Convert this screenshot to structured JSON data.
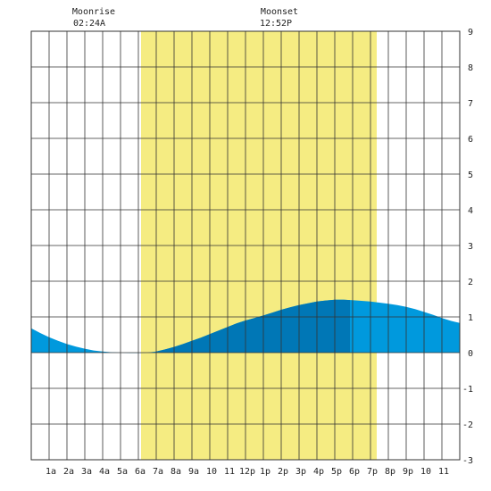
{
  "moon": {
    "rise_label": "Moonrise",
    "rise_time": "02:24A",
    "set_label": "Moonset",
    "set_time": "12:52P"
  },
  "chart_data": {
    "type": "area",
    "title": "",
    "xlabel": "",
    "ylabel": "",
    "x_range_hours": [
      0,
      24
    ],
    "ylim": [
      -3,
      9
    ],
    "y_ticks": [
      9,
      8,
      7,
      6,
      5,
      4,
      3,
      2,
      1,
      0,
      -1,
      -2,
      -3
    ],
    "x_ticks": [
      {
        "hour": 1,
        "label": "1a"
      },
      {
        "hour": 2,
        "label": "2a"
      },
      {
        "hour": 3,
        "label": "3a"
      },
      {
        "hour": 4,
        "label": "4a"
      },
      {
        "hour": 5,
        "label": "5a"
      },
      {
        "hour": 6,
        "label": "6a"
      },
      {
        "hour": 7,
        "label": "7a"
      },
      {
        "hour": 8,
        "label": "8a"
      },
      {
        "hour": 9,
        "label": "9a"
      },
      {
        "hour": 10,
        "label": "10"
      },
      {
        "hour": 11,
        "label": "11"
      },
      {
        "hour": 12,
        "label": "12p"
      },
      {
        "hour": 13,
        "label": "1p"
      },
      {
        "hour": 14,
        "label": "2p"
      },
      {
        "hour": 15,
        "label": "3p"
      },
      {
        "hour": 16,
        "label": "4p"
      },
      {
        "hour": 17,
        "label": "5p"
      },
      {
        "hour": 18,
        "label": "6p"
      },
      {
        "hour": 19,
        "label": "7p"
      },
      {
        "hour": 20,
        "label": "8p"
      },
      {
        "hour": 21,
        "label": "9p"
      },
      {
        "hour": 22,
        "label": "10"
      },
      {
        "hour": 23,
        "label": "11"
      }
    ],
    "grid": true,
    "daylight_hours": [
      6.15,
      19.35
    ],
    "rising_tide_hours": [
      7.0,
      17.85
    ],
    "moonrise_hour": 2.4,
    "moonset_hour": 12.87,
    "series": [
      {
        "x": [
          0,
          0.5,
          1,
          1.5,
          2,
          2.5,
          3,
          3.5,
          4,
          4.5,
          5,
          5.5,
          6,
          6.5,
          7,
          7.5,
          8,
          8.5,
          9,
          9.5,
          10,
          10.5,
          11,
          11.5,
          12,
          12.5,
          13,
          13.5,
          14,
          14.5,
          15,
          15.5,
          16,
          16.5,
          17,
          17.5,
          18,
          18.5,
          19,
          19.5,
          20,
          20.5,
          21,
          21.5,
          22,
          22.5,
          23,
          23.5,
          24
        ],
        "values": [
          0.68,
          0.55,
          0.43,
          0.33,
          0.24,
          0.17,
          0.11,
          0.06,
          0.03,
          0.01,
          0.0,
          -0.01,
          -0.01,
          0.0,
          0.03,
          0.09,
          0.16,
          0.24,
          0.33,
          0.42,
          0.52,
          0.62,
          0.72,
          0.82,
          0.9,
          0.97,
          1.04,
          1.12,
          1.2,
          1.27,
          1.33,
          1.38,
          1.43,
          1.46,
          1.48,
          1.48,
          1.47,
          1.45,
          1.43,
          1.4,
          1.37,
          1.33,
          1.28,
          1.22,
          1.14,
          1.06,
          0.97,
          0.89,
          0.83
        ]
      }
    ],
    "colors": {
      "daylight": "#f5ec82",
      "tide": "#0099dd",
      "tide_rising": "#0077b6",
      "grid": "#333333"
    }
  }
}
